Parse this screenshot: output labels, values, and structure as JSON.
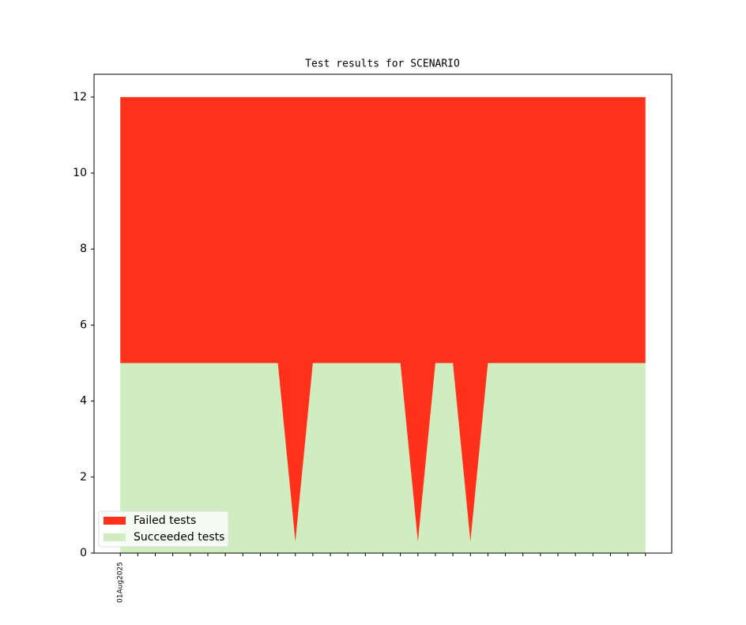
{
  "chart_data": {
    "type": "stacked-area",
    "title": "Test results for SCENARIO",
    "categories": [
      "01Aug2025",
      null,
      null,
      null,
      null,
      null,
      null,
      null,
      null,
      null,
      null,
      null,
      null,
      null,
      null,
      null,
      null,
      null,
      null,
      null,
      null,
      null,
      null,
      null,
      null,
      null,
      null,
      null,
      null,
      null,
      null
    ],
    "series": [
      {
        "name": "Failed tests",
        "color": "#ff311a",
        "values": [
          7,
          7,
          7,
          7,
          7,
          7,
          7,
          7,
          7,
          7,
          11.7,
          7,
          7,
          7,
          7,
          7,
          7,
          11.7,
          7,
          7,
          11.7,
          7,
          7,
          7,
          7,
          7,
          7,
          7,
          7,
          7,
          7
        ]
      },
      {
        "name": "Succeeded tests",
        "color": "#d0edc0",
        "values": [
          5,
          5,
          5,
          5,
          5,
          5,
          5,
          5,
          5,
          5,
          0.3,
          5,
          5,
          5,
          5,
          5,
          5,
          0.3,
          5,
          5,
          0.3,
          5,
          5,
          5,
          5,
          5,
          5,
          5,
          5,
          5,
          5
        ]
      }
    ],
    "ylim": [
      0,
      12.6
    ],
    "yticks": [
      0,
      2,
      4,
      6,
      8,
      10,
      12
    ],
    "legend": "lower-left",
    "grid": false
  }
}
